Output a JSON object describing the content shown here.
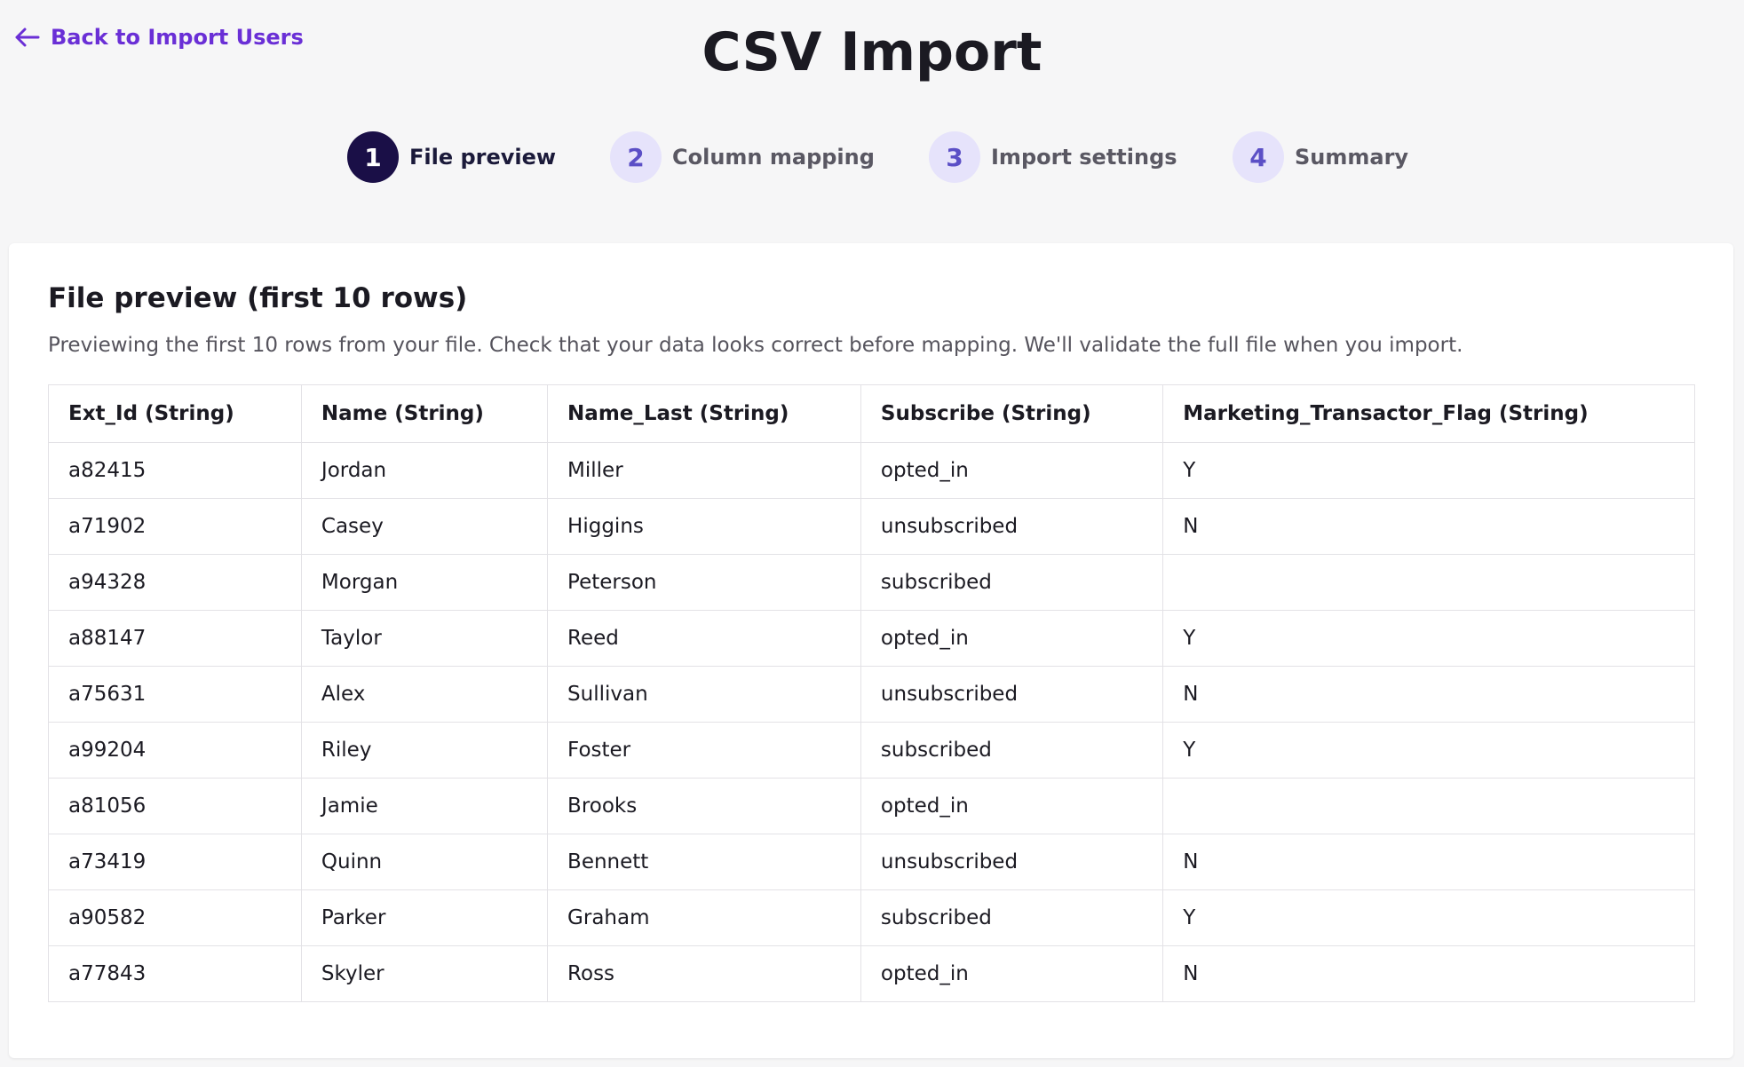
{
  "header": {
    "back_link": "Back to Import Users",
    "title": "CSV Import"
  },
  "steps": [
    {
      "number": 1,
      "label": "File preview"
    },
    {
      "number": 2,
      "label": "Column mapping"
    },
    {
      "number": 3,
      "label": "Import settings"
    },
    {
      "number": 4,
      "label": "Summary"
    }
  ],
  "card": {
    "title": "File preview (first 10 rows)",
    "description": "Previewing the first 10 rows from your file. Check that your data looks correct before mapping. We'll validate the full file when you import."
  },
  "table": {
    "columns": [
      "Ext_Id (String)",
      "Name (String)",
      "Name_Last (String)",
      "Subscribe (String)",
      "Marketing_Transactor_Flag (String)"
    ],
    "rows": [
      [
        "a82415",
        "Jordan",
        "Miller",
        "opted_in",
        "Y"
      ],
      [
        "a71902",
        "Casey",
        "Higgins",
        "unsubscribed",
        "N"
      ],
      [
        "a94328",
        "Morgan",
        "Peterson",
        "subscribed",
        null
      ],
      [
        "a88147",
        "Taylor",
        "Reed",
        "opted_in",
        "Y"
      ],
      [
        "a75631",
        "Alex",
        "Sullivan",
        "unsubscribed",
        "N"
      ],
      [
        "a99204",
        "Riley",
        "Foster",
        "subscribed",
        "Y"
      ],
      [
        "a81056",
        "Jamie",
        "Brooks",
        "opted_in",
        null
      ],
      [
        "a73419",
        "Quinn",
        "Bennett",
        "unsubscribed",
        "N"
      ],
      [
        "a90582",
        "Parker",
        "Graham",
        "subscribed",
        "Y"
      ],
      [
        "a77843",
        "Skyler",
        "Ross",
        "opted_in",
        "N"
      ]
    ]
  }
}
